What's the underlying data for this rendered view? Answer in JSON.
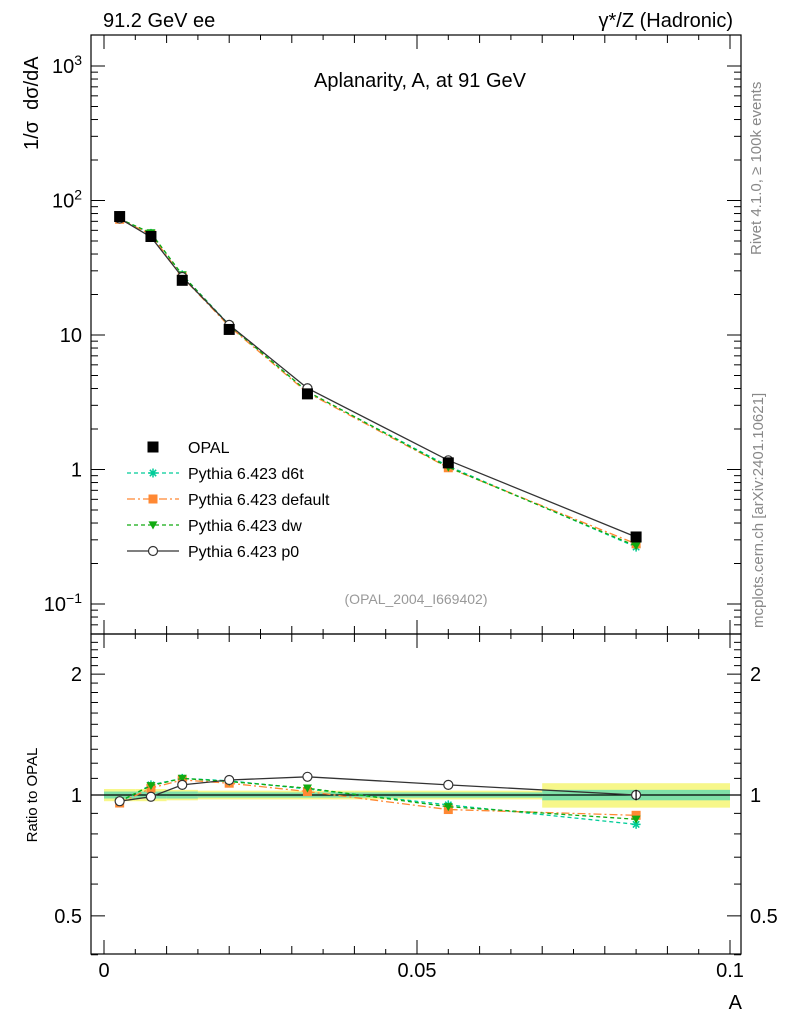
{
  "header": {
    "left": "91.2 GeV ee",
    "right": "γ*/Z (Hadronic)"
  },
  "side": {
    "rivet": "Rivet 4.1.0, ≥ 100k events",
    "mcplots": "mcplots.cern.ch [arXiv:2401.10621]"
  },
  "chart_data": {
    "type": "line",
    "title": "Aplanarity, A, at 91 GeV",
    "analysis_tag": "(OPAL_2004_I669402)",
    "xlabel": "A",
    "ylabel": "1/σ  dσ/dA",
    "ratio_ylabel": "Ratio to OPAL",
    "xlim": [
      0,
      0.1
    ],
    "ylim": [
      0.07,
      1800
    ],
    "ratio_ylim": [
      0.4,
      2.4
    ],
    "y_scale": "log",
    "x_ticks": [
      0,
      0.05,
      0.1
    ],
    "x_tick_labels": [
      "0",
      "0.05",
      "0.1"
    ],
    "y_ticks": [
      0.1,
      1,
      10,
      100,
      1000
    ],
    "y_tick_labels": [
      {
        "base": "10",
        "exp": "−1"
      },
      {
        "base": "1",
        "exp": ""
      },
      {
        "base": "10",
        "exp": ""
      },
      {
        "base": "10",
        "exp": "2"
      },
      {
        "base": "10",
        "exp": "3"
      }
    ],
    "ratio_ticks": [
      0.5,
      1,
      2
    ],
    "ratio_tick_labels": [
      "0.5",
      "1",
      "2"
    ],
    "x": [
      0.0025,
      0.0075,
      0.0125,
      0.02,
      0.0325,
      0.055,
      0.085
    ],
    "bin_edges": [
      0,
      0.005,
      0.01,
      0.015,
      0.025,
      0.04,
      0.07,
      0.1
    ],
    "data": {
      "name": "OPAL",
      "values": [
        76,
        54,
        25.5,
        11,
        3.65,
        1.12,
        0.315
      ],
      "ratio_band_inner": [
        0.02,
        0.02,
        0.02,
        0.015,
        0.015,
        0.015,
        0.03
      ],
      "ratio_band_outer": [
        0.035,
        0.035,
        0.03,
        0.025,
        0.025,
        0.025,
        0.07
      ]
    },
    "series": [
      {
        "name": "Pythia 6.423 d6t",
        "color": "#00cc99",
        "dash": "4,3",
        "marker": "star",
        "values": [
          73,
          57,
          28,
          11.9,
          3.78,
          1.06,
          0.265
        ],
        "ratio": [
          0.96,
          1.06,
          1.1,
          1.085,
          1.035,
          0.945,
          0.845
        ]
      },
      {
        "name": "Pythia 6.423 default",
        "color": "#ff8833",
        "dash": "8,3,2,3",
        "marker": "square",
        "values": [
          72.5,
          56,
          27,
          11.6,
          3.72,
          1.03,
          0.28
        ],
        "ratio": [
          0.955,
          1.04,
          1.09,
          1.07,
          1.02,
          0.92,
          0.89
        ]
      },
      {
        "name": "Pythia 6.423 dw",
        "color": "#11aa11",
        "dash": "4,3",
        "marker": "triangle",
        "values": [
          73,
          57.5,
          28,
          11.8,
          3.8,
          1.04,
          0.27
        ],
        "ratio": [
          0.965,
          1.055,
          1.1,
          1.08,
          1.04,
          0.935,
          0.87
        ]
      },
      {
        "name": "Pythia 6.423 p0",
        "color": "#333333",
        "dash": "",
        "marker": "circle",
        "values": [
          73.5,
          53.5,
          27,
          11.9,
          4.02,
          1.17,
          0.315
        ],
        "ratio": [
          0.965,
          0.99,
          1.06,
          1.09,
          1.11,
          1.06,
          1.0
        ]
      }
    ],
    "legend_position": "lower-left"
  }
}
